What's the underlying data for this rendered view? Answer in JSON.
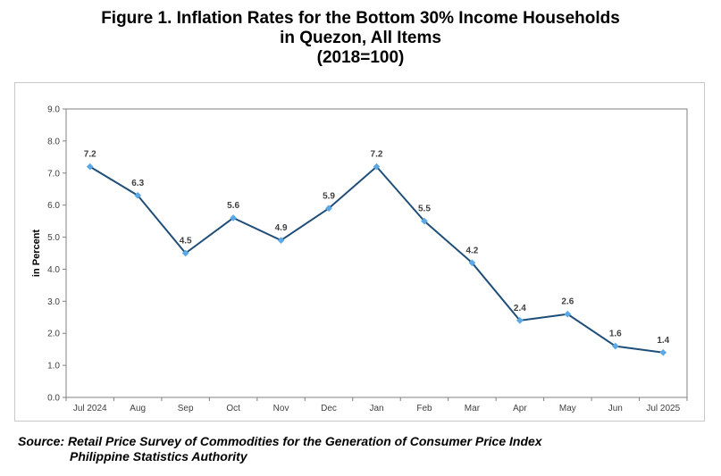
{
  "title": {
    "line1": "Figure 1. Inflation Rates for the Bottom 30% Income Households",
    "line2": "in Quezon, All Items",
    "line3": "(2018=100)"
  },
  "source": {
    "line1": "Source: Retail Price Survey of Commodities for the Generation of Consumer Price Index",
    "line2": "Philippine Statistics Authority"
  },
  "colors": {
    "line": "#1f4e79",
    "marker": "#5aa9e6",
    "grid": "#d9d9d9",
    "axis": "#808080"
  },
  "chart_data": {
    "type": "line",
    "categories": [
      "Jul 2024",
      "Aug",
      "Sep",
      "Oct",
      "Nov",
      "Dec",
      "Jan",
      "Feb",
      "Mar",
      "Apr",
      "May",
      "Jun",
      "Jul 2025"
    ],
    "values": [
      7.2,
      6.3,
      4.5,
      5.6,
      4.9,
      5.9,
      7.2,
      5.5,
      4.2,
      2.4,
      2.6,
      1.6,
      1.4
    ],
    "data_labels": [
      "7.2",
      "6.3",
      "4.5",
      "5.6",
      "4.9",
      "5.9",
      "7.2",
      "5.5",
      "4.2",
      "2.4",
      "2.6",
      "1.6",
      "1.4"
    ],
    "ylabel": "in Percent",
    "xlabel": "",
    "ylim": [
      0,
      9
    ],
    "yticks": [
      "0.0",
      "1.0",
      "2.0",
      "3.0",
      "4.0",
      "5.0",
      "6.0",
      "7.0",
      "8.0",
      "9.0"
    ],
    "grid": false,
    "legend": "none"
  }
}
